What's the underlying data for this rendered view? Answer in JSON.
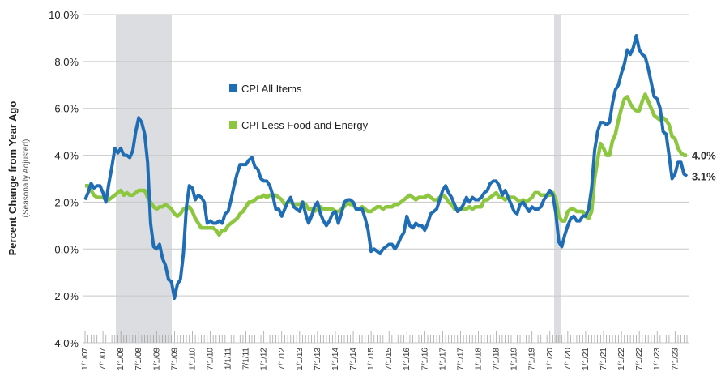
{
  "chart_data": {
    "type": "line",
    "y_axis_label": "Percent Change from Year Ago",
    "y_axis_sublabel": "(Seasonally Adjusted)",
    "categories": [
      "1/1/07",
      null,
      null,
      null,
      null,
      null,
      "7/1/07",
      null,
      null,
      null,
      null,
      null,
      "1/1/08",
      null,
      null,
      null,
      null,
      null,
      "7/1/08",
      null,
      null,
      null,
      null,
      null,
      "1/1/09",
      null,
      null,
      null,
      null,
      null,
      "7/1/09",
      null,
      null,
      null,
      null,
      null,
      "1/1/10",
      null,
      null,
      null,
      null,
      null,
      "7/1/10",
      null,
      null,
      null,
      null,
      null,
      "1/1/11",
      null,
      null,
      null,
      null,
      null,
      "7/1/11",
      null,
      null,
      null,
      null,
      null,
      "1/1/12",
      null,
      null,
      null,
      null,
      null,
      "7/1/12",
      null,
      null,
      null,
      null,
      null,
      "1/1/13",
      null,
      null,
      null,
      null,
      null,
      "7/1/13",
      null,
      null,
      null,
      null,
      null,
      "1/1/14",
      null,
      null,
      null,
      null,
      null,
      "7/1/14",
      null,
      null,
      null,
      null,
      null,
      "1/1/15",
      null,
      null,
      null,
      null,
      null,
      "7/1/15",
      null,
      null,
      null,
      null,
      null,
      "1/1/16",
      null,
      null,
      null,
      null,
      null,
      "7/1/16",
      null,
      null,
      null,
      null,
      null,
      "1/1/17",
      null,
      null,
      null,
      null,
      null,
      "7/1/17",
      null,
      null,
      null,
      null,
      null,
      "1/1/18",
      null,
      null,
      null,
      null,
      null,
      "7/1/18",
      null,
      null,
      null,
      null,
      null,
      "1/1/19",
      null,
      null,
      null,
      null,
      null,
      "7/1/19",
      null,
      null,
      null,
      null,
      null,
      "1/1/20",
      null,
      null,
      null,
      null,
      null,
      "7/1/20",
      null,
      null,
      null,
      null,
      null,
      "1/1/21",
      null,
      null,
      null,
      null,
      null,
      "7/1/21",
      null,
      null,
      null,
      null,
      null,
      "1/1/22",
      null,
      null,
      null,
      null,
      null,
      "7/1/22",
      null,
      null,
      null,
      null,
      null,
      "1/1/23",
      null,
      null,
      null,
      null,
      null,
      "7/1/23",
      null,
      null,
      null,
      null
    ],
    "series": [
      {
        "name": "CPI Less Food and Energy",
        "color": "#8dc63f",
        "last_label": "4.0%",
        "values": [
          2.7,
          2.7,
          2.5,
          2.3,
          2.2,
          2.2,
          2.2,
          2.1,
          2.1,
          2.2,
          2.3,
          2.4,
          2.5,
          2.3,
          2.4,
          2.3,
          2.3,
          2.4,
          2.5,
          2.5,
          2.5,
          2.2,
          2.0,
          1.8,
          1.7,
          1.8,
          1.8,
          1.9,
          1.8,
          1.7,
          1.5,
          1.4,
          1.5,
          1.7,
          1.7,
          1.8,
          1.6,
          1.3,
          1.1,
          0.9,
          0.9,
          0.9,
          0.9,
          0.9,
          0.8,
          0.6,
          0.8,
          0.8,
          1.0,
          1.1,
          1.2,
          1.3,
          1.5,
          1.6,
          1.8,
          2.0,
          2.0,
          2.1,
          2.2,
          2.2,
          2.3,
          2.2,
          2.3,
          2.3,
          2.3,
          2.2,
          2.1,
          1.9,
          2.0,
          2.0,
          1.9,
          1.9,
          1.9,
          2.0,
          1.9,
          1.7,
          1.7,
          1.6,
          1.7,
          1.8,
          1.7,
          1.7,
          1.7,
          1.7,
          1.6,
          1.6,
          1.7,
          1.8,
          2.0,
          1.9,
          1.9,
          1.7,
          1.7,
          1.8,
          1.7,
          1.6,
          1.6,
          1.7,
          1.8,
          1.8,
          1.7,
          1.8,
          1.8,
          1.8,
          1.9,
          1.9,
          2.0,
          2.1,
          2.2,
          2.3,
          2.2,
          2.1,
          2.2,
          2.2,
          2.2,
          2.3,
          2.2,
          2.1,
          2.1,
          2.2,
          2.3,
          2.2,
          2.0,
          1.9,
          1.7,
          1.7,
          1.7,
          1.7,
          1.7,
          1.8,
          1.7,
          1.8,
          1.8,
          1.8,
          2.1,
          2.1,
          2.2,
          2.3,
          2.4,
          2.2,
          2.2,
          2.1,
          2.2,
          2.2,
          2.2,
          2.1,
          2.0,
          2.1,
          2.0,
          2.1,
          2.2,
          2.4,
          2.4,
          2.3,
          2.3,
          2.3,
          2.3,
          2.4,
          2.1,
          1.4,
          1.2,
          1.2,
          1.6,
          1.7,
          1.7,
          1.6,
          1.6,
          1.6,
          1.4,
          1.3,
          1.6,
          3.0,
          3.8,
          4.5,
          4.3,
          4.0,
          4.0,
          4.6,
          4.9,
          5.5,
          6.0,
          6.4,
          6.5,
          6.2,
          6.0,
          5.9,
          5.9,
          6.3,
          6.6,
          6.3,
          6.0,
          5.7,
          5.6,
          5.5,
          5.6,
          5.5,
          5.3,
          4.8,
          4.7,
          4.3,
          4.1,
          4.0,
          4.0
        ]
      },
      {
        "name": "CPI All Items",
        "color": "#1f6db5",
        "last_label": "3.1%",
        "values": [
          2.1,
          2.4,
          2.8,
          2.6,
          2.7,
          2.7,
          2.4,
          2.0,
          2.8,
          3.5,
          4.3,
          4.1,
          4.3,
          4.0,
          4.0,
          3.9,
          4.2,
          5.0,
          5.6,
          5.4,
          4.9,
          3.7,
          1.1,
          0.1,
          0.0,
          0.2,
          -0.4,
          -0.7,
          -1.3,
          -1.4,
          -2.1,
          -1.5,
          -1.3,
          -0.2,
          1.8,
          2.7,
          2.6,
          2.1,
          2.3,
          2.2,
          2.0,
          1.1,
          1.2,
          1.1,
          1.1,
          1.2,
          1.1,
          1.5,
          1.6,
          2.1,
          2.7,
          3.2,
          3.6,
          3.6,
          3.6,
          3.8,
          3.9,
          3.5,
          3.4,
          3.0,
          2.9,
          2.9,
          2.7,
          2.3,
          1.7,
          1.7,
          1.4,
          1.7,
          2.0,
          2.2,
          1.8,
          1.7,
          1.6,
          2.0,
          1.5,
          1.1,
          1.4,
          1.8,
          2.0,
          1.5,
          1.2,
          1.0,
          1.2,
          1.5,
          1.6,
          1.1,
          1.5,
          2.0,
          2.1,
          2.1,
          2.0,
          1.7,
          1.7,
          1.7,
          1.3,
          0.8,
          -0.1,
          0.0,
          -0.1,
          -0.2,
          0.0,
          0.1,
          0.2,
          0.2,
          0.0,
          0.2,
          0.5,
          0.7,
          1.4,
          1.0,
          0.9,
          1.1,
          1.0,
          1.0,
          0.8,
          1.1,
          1.5,
          1.6,
          1.7,
          2.1,
          2.5,
          2.7,
          2.4,
          2.2,
          1.9,
          1.6,
          1.7,
          1.9,
          2.2,
          2.0,
          2.2,
          2.1,
          2.1,
          2.2,
          2.4,
          2.5,
          2.8,
          2.9,
          2.9,
          2.7,
          2.3,
          2.5,
          2.2,
          1.9,
          1.6,
          1.5,
          1.9,
          2.0,
          1.8,
          1.6,
          1.8,
          1.7,
          1.7,
          1.8,
          2.1,
          2.3,
          2.5,
          2.3,
          1.5,
          0.3,
          0.1,
          0.6,
          1.0,
          1.3,
          1.4,
          1.2,
          1.2,
          1.4,
          1.4,
          1.7,
          2.6,
          4.2,
          5.0,
          5.4,
          5.4,
          5.3,
          5.4,
          6.2,
          6.8,
          7.0,
          7.5,
          7.9,
          8.5,
          8.3,
          8.6,
          9.1,
          8.5,
          8.3,
          8.2,
          7.7,
          7.1,
          6.5,
          6.4,
          6.0,
          5.0,
          4.9,
          4.0,
          3.0,
          3.2,
          3.7,
          3.7,
          3.2,
          3.1
        ]
      }
    ],
    "legend_order": [
      1,
      0
    ],
    "ylim": [
      -4,
      10
    ],
    "yticks": [
      {
        "value": -4,
        "label": "-4.0%"
      },
      {
        "value": -2,
        "label": "-2.0%"
      },
      {
        "value": 0,
        "label": "0.0%"
      },
      {
        "value": 2,
        "label": "2.0%"
      },
      {
        "value": 4,
        "label": "4.0%"
      },
      {
        "value": 6,
        "label": "6.0%"
      },
      {
        "value": 8,
        "label": "8.0%"
      },
      {
        "value": 10,
        "label": "10.0%"
      }
    ],
    "grid": true
  }
}
